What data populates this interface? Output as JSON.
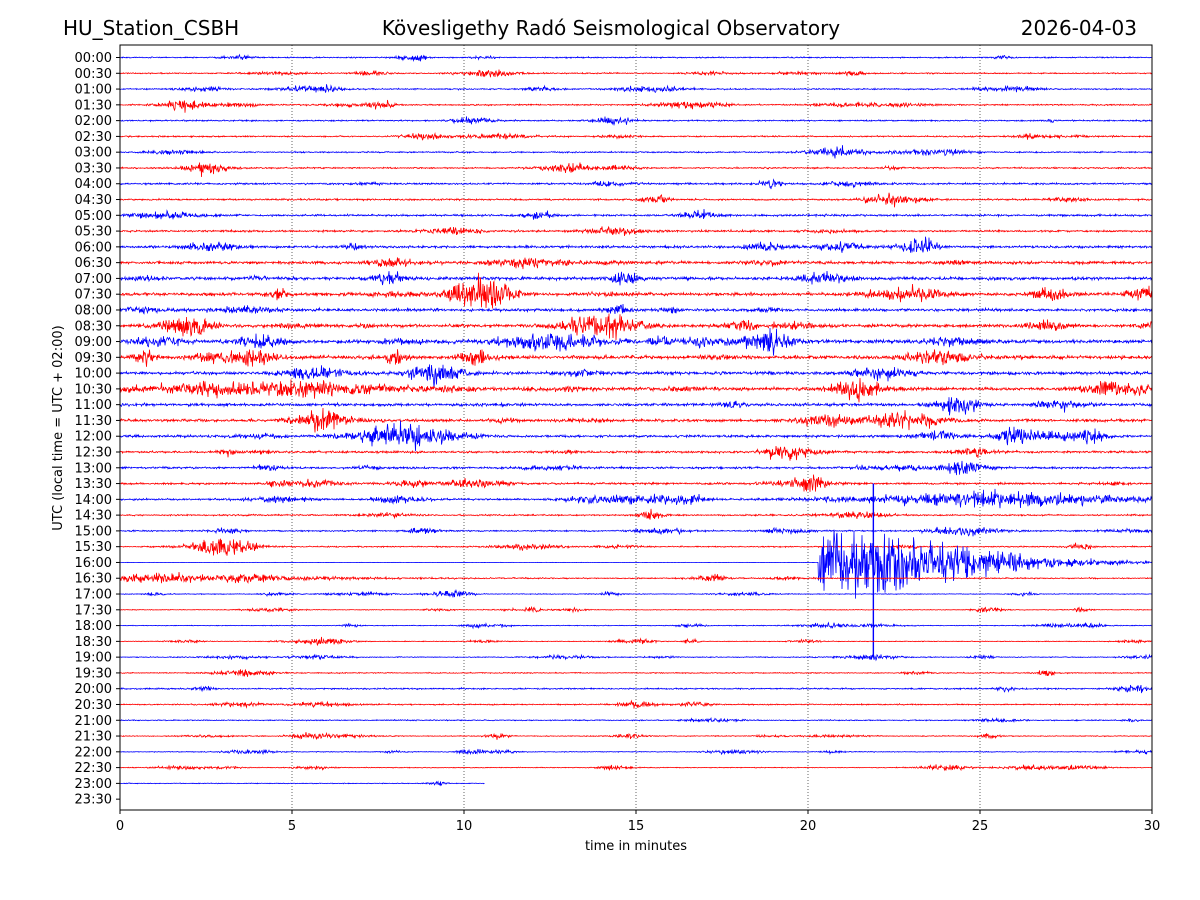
{
  "chart_data": {
    "type": "line",
    "plot_kind": "seismogram-helicorder",
    "title_left": "HU_Station_CSBH",
    "title": "Kövesligethy Radó Seismological Observatory",
    "title_right": "2026-04-03",
    "xlabel": "time in minutes",
    "ylabel": "UTC (local time = UTC + 02:00)",
    "xlim": [
      0,
      30
    ],
    "x_ticks": [
      0,
      5,
      10,
      15,
      20,
      25,
      30
    ],
    "x_tick_labels": [
      "0",
      "5",
      "10",
      "15",
      "20",
      "25",
      "30"
    ],
    "grid_x": true,
    "row_labels": [
      "00:00",
      "00:30",
      "01:00",
      "01:30",
      "02:00",
      "02:30",
      "03:00",
      "03:30",
      "04:00",
      "04:30",
      "05:00",
      "05:30",
      "06:00",
      "06:30",
      "07:00",
      "07:30",
      "08:00",
      "08:30",
      "09:00",
      "09:30",
      "10:00",
      "10:30",
      "11:00",
      "11:30",
      "12:00",
      "12:30",
      "13:00",
      "13:30",
      "14:00",
      "14:30",
      "15:00",
      "15:30",
      "16:00",
      "16:30",
      "17:00",
      "17:30",
      "18:00",
      "18:30",
      "19:00",
      "19:30",
      "20:00",
      "20:30",
      "21:00",
      "21:30",
      "22:00",
      "22:30",
      "23:00",
      "23:30"
    ],
    "trace_colors": [
      "#0000ff",
      "#ff0000"
    ],
    "trace_color_rule": "alternating rows: even index blue, odd index red",
    "row_noise_level": [
      0.35,
      0.35,
      0.4,
      0.4,
      0.4,
      0.4,
      0.4,
      0.4,
      0.5,
      0.5,
      0.55,
      0.55,
      0.7,
      0.8,
      0.9,
      0.9,
      0.8,
      0.9,
      1.0,
      1.0,
      0.9,
      0.9,
      0.8,
      0.8,
      0.75,
      0.6,
      0.6,
      0.55,
      0.55,
      0.45,
      0.4,
      0.35,
      0.3,
      0.35,
      0.22,
      0.2,
      0.2,
      0.2,
      0.25,
      0.3,
      0.4,
      0.35,
      0.3,
      0.25,
      0.22,
      0.22,
      0.22,
      0
    ],
    "trace_end_minute": {
      "23:00": 10.6
    },
    "trace_start_minute": {
      "16:00": 20.3
    },
    "pre_event_quiet": {
      "16:00": 0.08
    },
    "row_bursts": {
      "07:30": [
        [
          10.5,
          4.5,
          0.6
        ]
      ],
      "08:30": [
        [
          1.9,
          3.0,
          0.5
        ],
        [
          14.0,
          2.5,
          0.8
        ]
      ],
      "09:00": [
        [
          12.5,
          2.5,
          1.0
        ],
        [
          18.7,
          3.0,
          0.4
        ]
      ],
      "10:00": [
        [
          9.2,
          3.0,
          0.5
        ]
      ],
      "10:30": [
        [
          4.3,
          2.0,
          2.5
        ],
        [
          28.8,
          2.0,
          0.6
        ]
      ],
      "11:30": [
        [
          22.8,
          2.0,
          0.8
        ]
      ],
      "12:00": [
        [
          8.3,
          3.0,
          1.0
        ]
      ],
      "14:00": [
        [
          25.5,
          2.0,
          2.5
        ]
      ],
      "16:00": [
        [
          21.2,
          5.5,
          1.6
        ],
        [
          22.8,
          4.0,
          3.0
        ]
      ],
      "16:30": [
        [
          0.2,
          0.8,
          4.2
        ]
      ]
    },
    "spikes": [
      {
        "row": "16:00",
        "minute": 21.9,
        "up_rows": 5.0,
        "down_rows": 6.0
      }
    ],
    "event_descriptions": [
      "Earthquake signal on the 16:00 trace between about 20.3 and 28 minutes"
    ]
  }
}
